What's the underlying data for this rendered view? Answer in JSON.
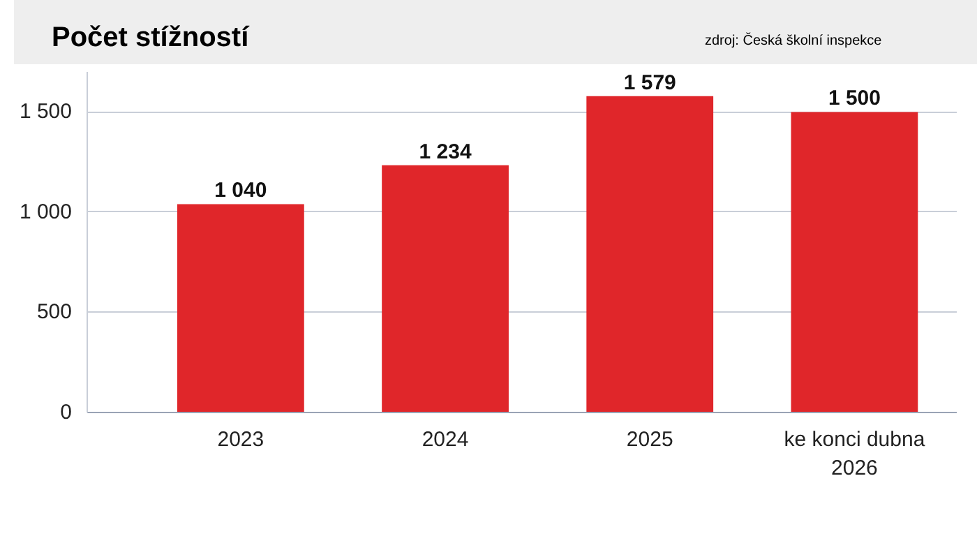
{
  "chart_data": {
    "type": "bar",
    "title": "Počet stížností",
    "annotations": [
      "zdroj: Česká školní inspekce"
    ],
    "categories": [
      "2023",
      "2024",
      "2025",
      "ke konci dubna\n2026"
    ],
    "values": [
      1040,
      1234,
      1579,
      1500
    ],
    "value_labels": [
      "1 040",
      "1 234",
      "1 579",
      "1 500"
    ],
    "color": "#e0262a",
    "ylim": [
      0,
      1700
    ],
    "yticks": [
      0,
      {
        "value": 500,
        "label": "500"
      },
      {
        "value": 1000,
        "label": "1 000"
      },
      {
        "value": 1500,
        "label": "1 500"
      }
    ],
    "grid": "y"
  }
}
